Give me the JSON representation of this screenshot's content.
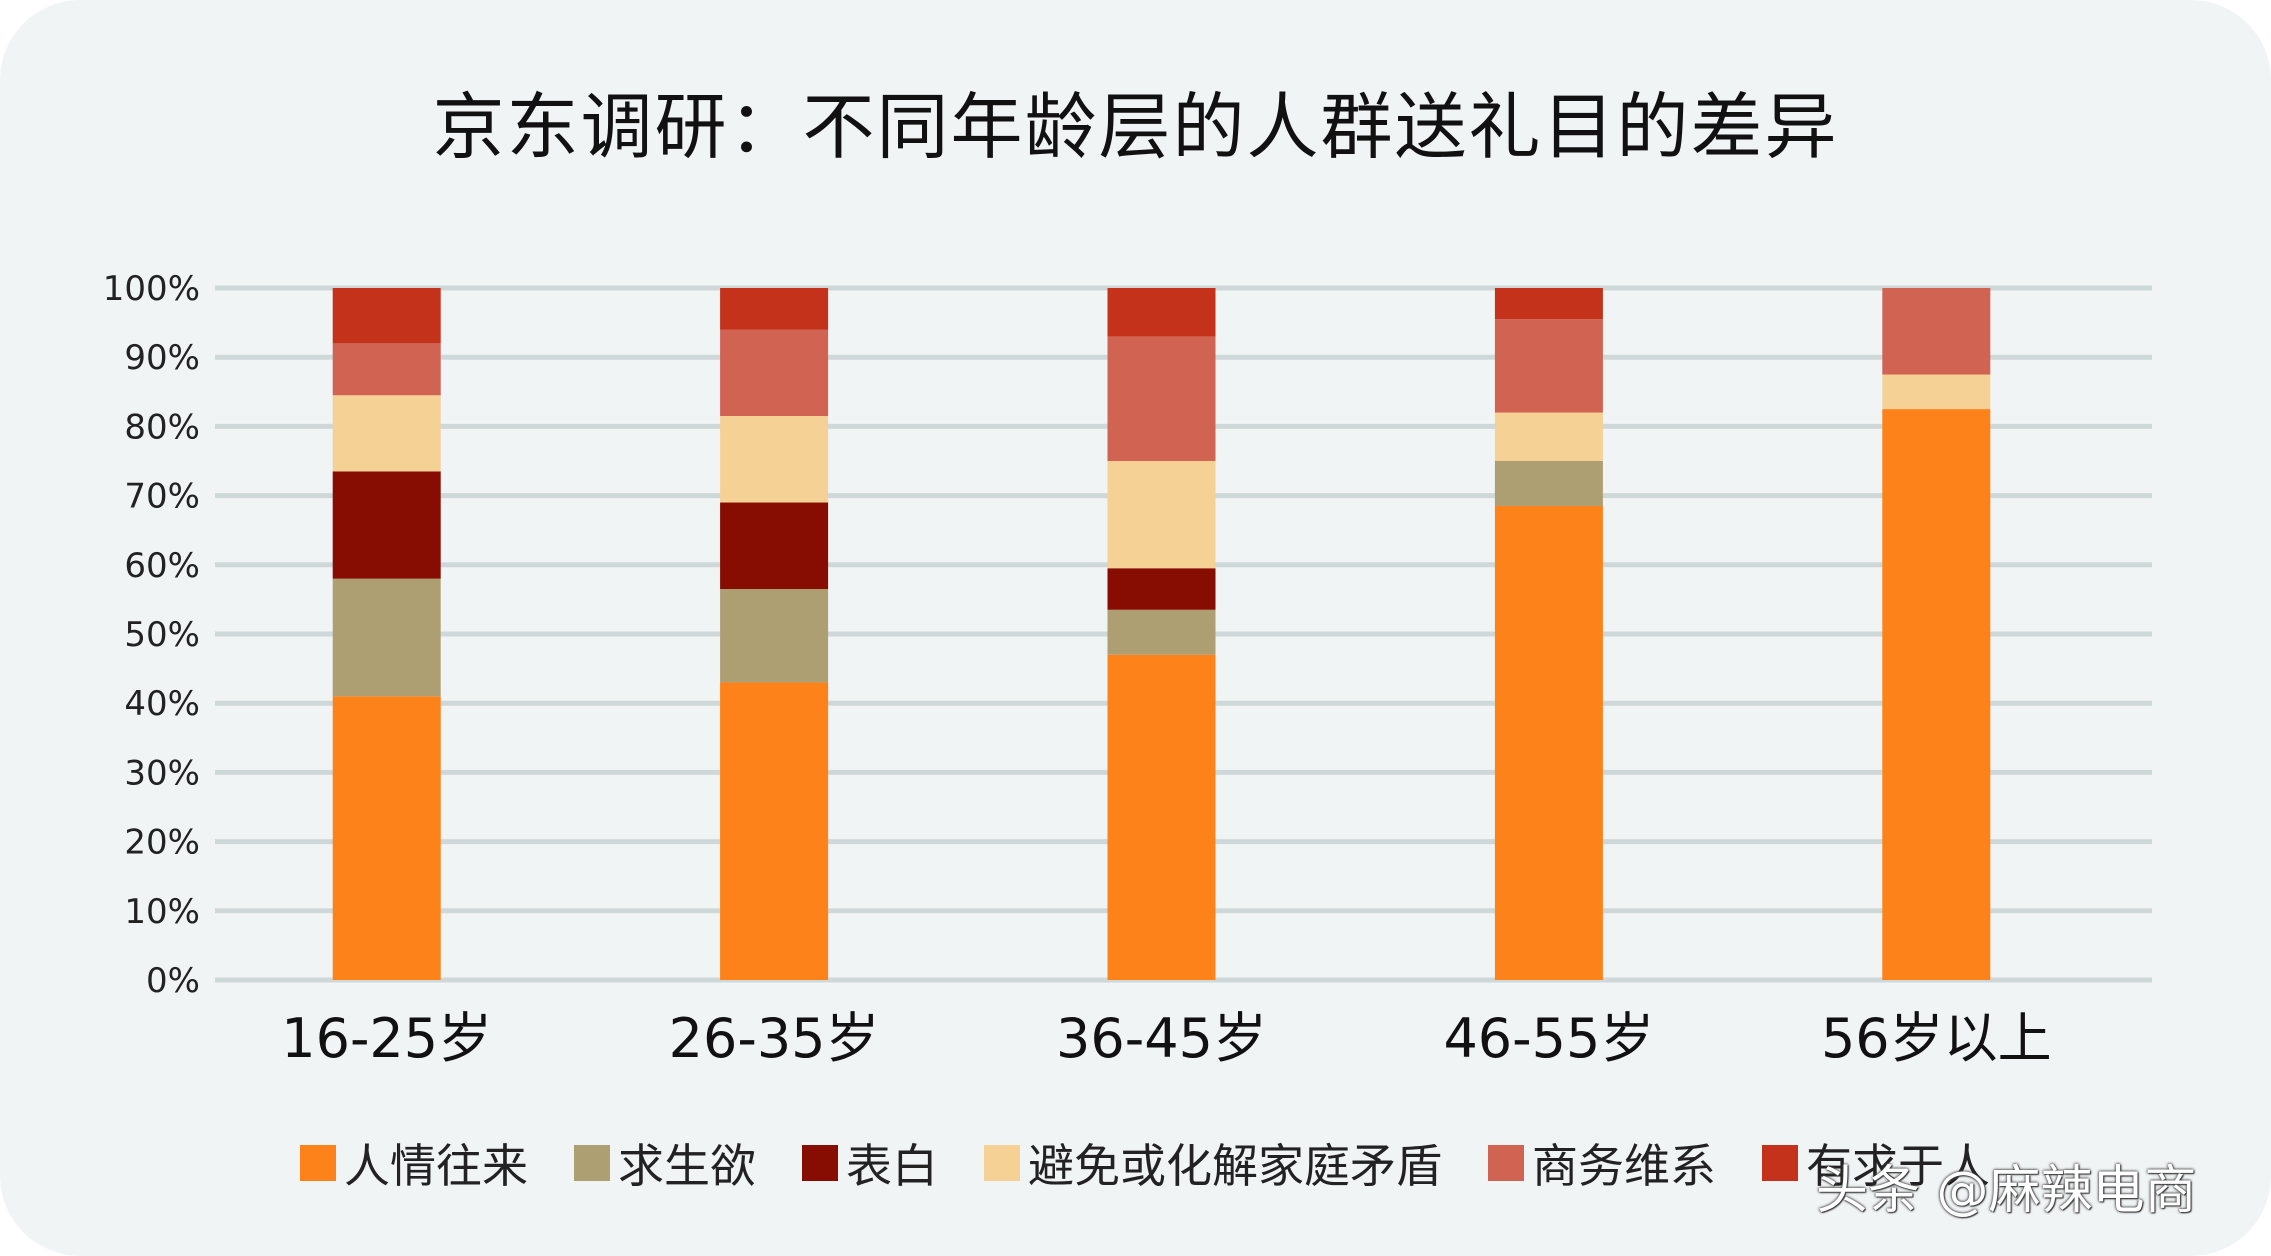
{
  "chart_data": {
    "type": "bar",
    "stacked": true,
    "title": "京东调研：不同年龄层的人群送礼目的差异",
    "categories": [
      "16-25岁",
      "26-35岁",
      "36-45岁",
      "46-55岁",
      "56岁以上"
    ],
    "y_ticks": [
      "0%",
      "10%",
      "20%",
      "30%",
      "40%",
      "50%",
      "60%",
      "70%",
      "80%",
      "90%",
      "100%"
    ],
    "ylim": [
      0,
      100
    ],
    "grid": true,
    "legend_position": "bottom",
    "series": [
      {
        "name": "人情往来",
        "color": "#fd8219",
        "values": [
          41,
          43,
          47,
          68.5,
          82.5
        ]
      },
      {
        "name": "求生欲",
        "color": "#ae9f73",
        "values": [
          17,
          13.5,
          6.5,
          6.5,
          0
        ]
      },
      {
        "name": "表白",
        "color": "#870c01",
        "values": [
          15.5,
          12.5,
          6,
          0,
          0
        ]
      },
      {
        "name": "避免或化解家庭矛盾",
        "color": "#f6d196",
        "values": [
          11,
          12.5,
          15.5,
          7,
          5
        ]
      },
      {
        "name": "商务维系",
        "color": "#d06352",
        "values": [
          7.5,
          12.5,
          18,
          13.5,
          12.5
        ]
      },
      {
        "name": "有求于人",
        "color": "#c5321c",
        "values": [
          8,
          6,
          7,
          4.5,
          0
        ]
      }
    ]
  },
  "watermark": "头条 @麻辣电商"
}
